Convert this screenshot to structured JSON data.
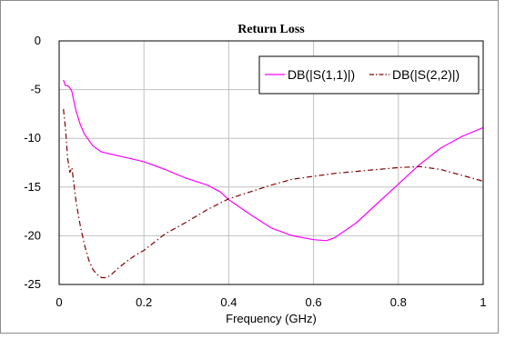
{
  "chart_data": {
    "type": "line",
    "title": "Return Loss",
    "xlabel": "Frequency (GHz)",
    "ylabel": "",
    "xlim": [
      0,
      1
    ],
    "ylim": [
      -25,
      0
    ],
    "xticks": [
      0,
      0.2,
      0.4,
      0.6,
      0.8,
      1
    ],
    "xtick_labels": [
      "0",
      "0.2",
      "0.4",
      "0.6",
      "0.8",
      "1"
    ],
    "yticks": [
      0,
      -5,
      -10,
      -15,
      -20,
      -25
    ],
    "ytick_labels": [
      "0",
      "-5",
      "-10",
      "-15",
      "-20",
      "-25"
    ],
    "grid": true,
    "legend_position": "top-right",
    "series": [
      {
        "name": "DB(|S(1,1)|)",
        "color": "#ff00ff",
        "dash": "solid",
        "x": [
          0.01,
          0.015,
          0.02,
          0.025,
          0.03,
          0.04,
          0.05,
          0.06,
          0.08,
          0.1,
          0.15,
          0.2,
          0.25,
          0.3,
          0.35,
          0.38,
          0.4,
          0.45,
          0.5,
          0.55,
          0.6,
          0.63,
          0.65,
          0.7,
          0.75,
          0.8,
          0.85,
          0.9,
          0.95,
          1.0
        ],
        "y": [
          -4.0,
          -4.6,
          -4.6,
          -4.8,
          -5.2,
          -7.2,
          -8.6,
          -9.6,
          -10.8,
          -11.4,
          -11.9,
          -12.4,
          -13.2,
          -14.1,
          -14.8,
          -15.5,
          -16.3,
          -17.8,
          -19.2,
          -20.0,
          -20.4,
          -20.5,
          -20.2,
          -18.7,
          -16.7,
          -14.7,
          -12.7,
          -11.0,
          -9.8,
          -8.9
        ]
      },
      {
        "name": "DB(|S(2,2)|)",
        "color": "#800000",
        "dash": "dashdot",
        "x": [
          0.01,
          0.015,
          0.02,
          0.025,
          0.03,
          0.04,
          0.05,
          0.06,
          0.07,
          0.08,
          0.09,
          0.1,
          0.11,
          0.12,
          0.14,
          0.16,
          0.18,
          0.2,
          0.25,
          0.3,
          0.35,
          0.4,
          0.45,
          0.5,
          0.55,
          0.6,
          0.65,
          0.7,
          0.75,
          0.8,
          0.85,
          0.9,
          0.95,
          1.0
        ],
        "y": [
          -7.0,
          -9.0,
          -12.0,
          -13.5,
          -13.0,
          -16.5,
          -19.0,
          -21.0,
          -22.5,
          -23.5,
          -24.0,
          -24.3,
          -24.3,
          -24.1,
          -23.3,
          -22.6,
          -22.0,
          -21.5,
          -19.8,
          -18.6,
          -17.3,
          -16.2,
          -15.5,
          -14.8,
          -14.2,
          -13.9,
          -13.6,
          -13.4,
          -13.2,
          -13.0,
          -12.9,
          -13.2,
          -13.8,
          -14.4
        ]
      }
    ]
  }
}
